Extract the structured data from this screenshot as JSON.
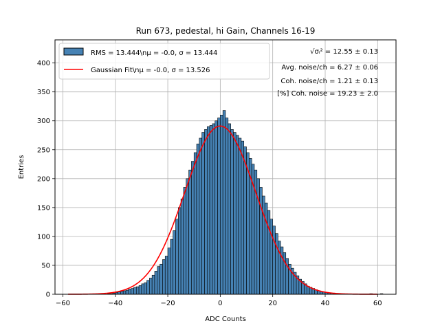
{
  "chart_data": {
    "type": "bar",
    "title": "Run 673, pedestal, hi Gain, Channels 16-19",
    "xlabel": "ADC Counts",
    "ylabel": "Entries",
    "xlim": [
      -63,
      67
    ],
    "ylim": [
      0,
      440
    ],
    "xticks": [
      -60,
      -40,
      -20,
      0,
      20,
      40,
      60
    ],
    "yticks": [
      0,
      50,
      100,
      150,
      200,
      250,
      300,
      350,
      400
    ],
    "grid": true,
    "bar_color": "#4682b4",
    "bar_edge_color": "#000000",
    "fit_color": "#ff0000",
    "bin_width": 1,
    "bins": {
      "x_start": -58,
      "values": [
        0,
        0,
        0,
        0,
        0,
        0,
        0,
        0,
        0,
        0,
        0,
        0,
        0,
        0,
        0,
        1,
        1,
        2,
        3,
        4,
        5,
        6,
        7,
        9,
        10,
        12,
        13,
        15,
        18,
        20,
        24,
        28,
        33,
        40,
        48,
        52,
        60,
        66,
        80,
        95,
        110,
        130,
        150,
        165,
        185,
        200,
        215,
        230,
        245,
        260,
        270,
        280,
        285,
        290,
        292,
        295,
        300,
        305,
        310,
        318,
        305,
        295,
        285,
        280,
        275,
        270,
        265,
        255,
        245,
        235,
        225,
        215,
        200,
        185,
        170,
        158,
        145,
        130,
        118,
        105,
        92,
        82,
        72,
        62,
        52,
        45,
        38,
        32,
        26,
        22,
        18,
        14,
        12,
        10,
        8,
        6,
        5,
        4,
        3,
        2,
        2,
        1,
        1,
        1,
        0,
        0,
        0,
        0,
        0,
        0,
        0,
        0,
        0,
        0,
        0,
        1,
        0,
        0,
        0,
        1
      ]
    },
    "fit": {
      "mu": 0.0,
      "sigma": 13.526,
      "amplitude": 291,
      "x_range": [
        -58,
        60
      ]
    },
    "legend": {
      "position": "top-left",
      "entries": [
        {
          "label": "RMS = 13.444\\nμ = -0.0, σ = 13.444",
          "kind": "patch"
        },
        {
          "label": "Gaussian Fit\\nμ = -0.0, σ = 13.526",
          "kind": "line"
        }
      ]
    },
    "annotations": {
      "sqrt_text": "√σᵢ² = 12.55 ± 0.13",
      "avg_noise": "Avg. noise/ch = 6.27 ± 0.06",
      "coh_noise": "Coh. noise/ch = 1.21 ± 0.13",
      "pct_coh": "[%] Coh. noise = 19.23 ± 2.0"
    }
  }
}
